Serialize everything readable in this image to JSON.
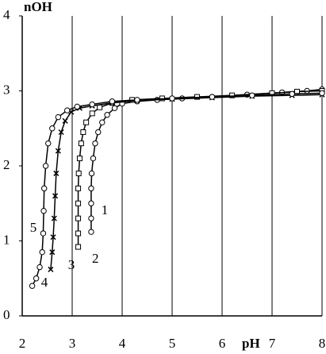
{
  "chart_data": {
    "type": "line",
    "x_label": "pH",
    "y_label": "nOH",
    "xlim": [
      2,
      8
    ],
    "ylim": [
      0,
      4
    ],
    "xticks": [
      2,
      3,
      4,
      5,
      6,
      7,
      8
    ],
    "yticks": [
      0,
      1,
      2,
      3,
      4
    ],
    "grid": "x",
    "annotations": [
      "2"
    ],
    "series": [
      {
        "name": "1",
        "color": "#000000",
        "marker": "circle",
        "x": [
          3.38,
          3.38,
          3.38,
          3.38,
          3.39,
          3.42,
          3.46,
          3.52,
          3.6,
          3.7,
          3.85,
          4.0,
          4.3,
          4.7,
          5.2,
          5.8,
          6.5,
          7.2,
          7.7,
          8.0
        ],
        "values": [
          1.12,
          1.3,
          1.5,
          1.7,
          1.9,
          2.1,
          2.3,
          2.45,
          2.58,
          2.68,
          2.77,
          2.83,
          2.86,
          2.88,
          2.9,
          2.92,
          2.95,
          2.98,
          3.0,
          3.02
        ]
      },
      {
        "name": "3",
        "color": "#000000",
        "marker": "square",
        "x": [
          3.12,
          3.12,
          3.12,
          3.12,
          3.12,
          3.13,
          3.15,
          3.18,
          3.22,
          3.28,
          3.4,
          3.55,
          3.8,
          4.2,
          4.8,
          5.5,
          6.2,
          7.0,
          7.5,
          8.0
        ],
        "values": [
          0.92,
          1.1,
          1.3,
          1.5,
          1.7,
          1.9,
          2.1,
          2.3,
          2.45,
          2.58,
          2.7,
          2.78,
          2.84,
          2.88,
          2.9,
          2.92,
          2.94,
          2.97,
          2.99,
          3.0
        ]
      },
      {
        "name": "4",
        "color": "#000000",
        "marker": "cross",
        "x": [
          2.57,
          2.6,
          2.62,
          2.64,
          2.66,
          2.68,
          2.72,
          2.78,
          2.86,
          2.98,
          3.15,
          3.4,
          3.8,
          4.3,
          5.0,
          5.8,
          6.6,
          7.4,
          8.0
        ],
        "values": [
          0.62,
          0.85,
          1.05,
          1.3,
          1.6,
          1.9,
          2.2,
          2.45,
          2.6,
          2.72,
          2.77,
          2.8,
          2.84,
          2.87,
          2.89,
          2.91,
          2.93,
          2.94,
          2.95
        ]
      },
      {
        "name": "5",
        "color": "#000000",
        "marker": "circle",
        "x": [
          2.2,
          2.28,
          2.35,
          2.4,
          2.42,
          2.43,
          2.44,
          2.47,
          2.52,
          2.6,
          2.72,
          2.9,
          3.1,
          3.4,
          3.8,
          4.3,
          5.0,
          5.8,
          6.6,
          7.4,
          8.0
        ],
        "values": [
          0.4,
          0.5,
          0.65,
          0.85,
          1.1,
          1.4,
          1.7,
          2.0,
          2.3,
          2.5,
          2.65,
          2.74,
          2.79,
          2.82,
          2.86,
          2.88,
          2.9,
          2.92,
          2.94,
          2.96,
          2.97
        ]
      }
    ]
  }
}
